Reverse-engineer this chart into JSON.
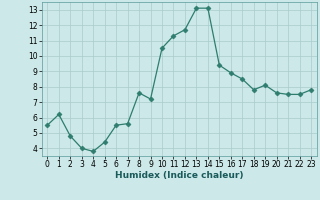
{
  "x": [
    0,
    1,
    2,
    3,
    4,
    5,
    6,
    7,
    8,
    9,
    10,
    11,
    12,
    13,
    14,
    15,
    16,
    17,
    18,
    19,
    20,
    21,
    22,
    23
  ],
  "y": [
    5.5,
    6.2,
    4.8,
    4.0,
    3.8,
    4.4,
    5.5,
    5.6,
    7.6,
    7.2,
    10.5,
    11.3,
    11.7,
    13.1,
    13.1,
    9.4,
    8.9,
    8.5,
    7.8,
    8.1,
    7.6,
    7.5,
    7.5,
    7.8
  ],
  "line_color": "#2e7d6e",
  "marker": "D",
  "marker_size": 2.5,
  "bg_color": "#cce8e8",
  "grid_color": "#aacccc",
  "xlabel": "Humidex (Indice chaleur)",
  "xlim": [
    -0.5,
    23.5
  ],
  "ylim": [
    3.5,
    13.5
  ],
  "yticks": [
    4,
    5,
    6,
    7,
    8,
    9,
    10,
    11,
    12,
    13
  ],
  "xticks": [
    0,
    1,
    2,
    3,
    4,
    5,
    6,
    7,
    8,
    9,
    10,
    11,
    12,
    13,
    14,
    15,
    16,
    17,
    18,
    19,
    20,
    21,
    22,
    23
  ],
  "tick_fontsize": 5.5,
  "label_fontsize": 6.5
}
